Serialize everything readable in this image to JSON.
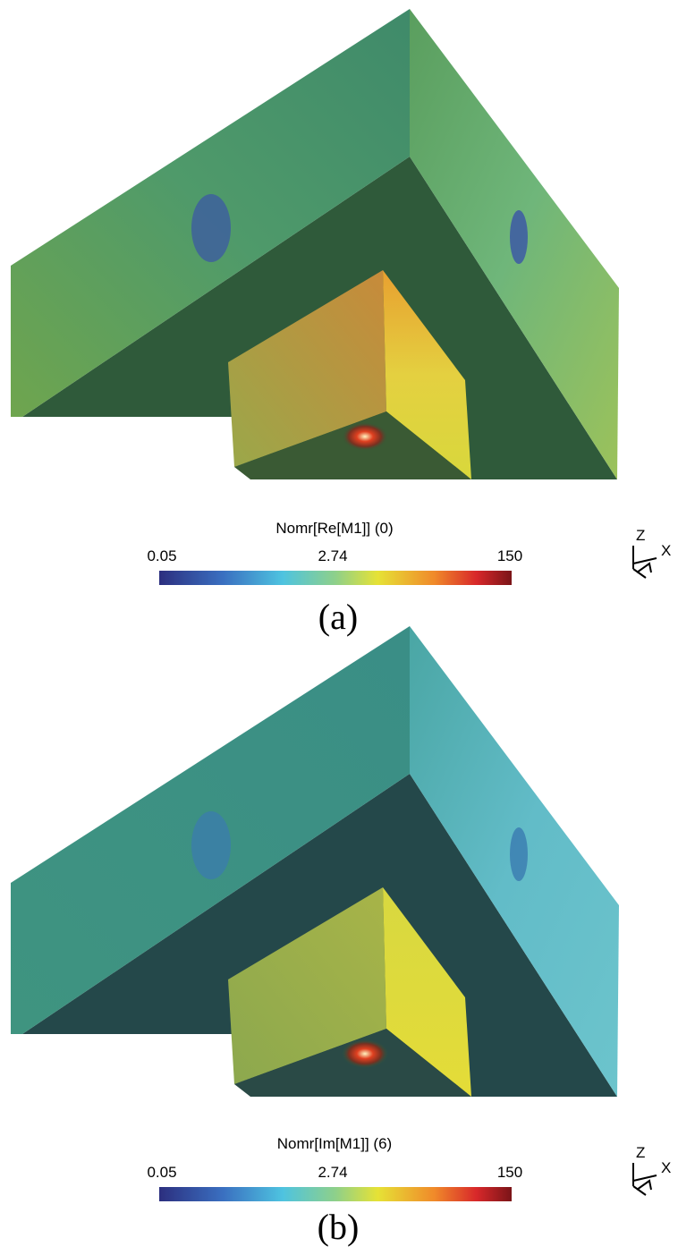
{
  "panels": [
    {
      "colorbar": {
        "title": "Nomr[Re[M1]] (0)",
        "ticks": [
          0.05,
          2.74,
          150
        ]
      },
      "axes": [
        "Z",
        "X"
      ],
      "caption": "(a)"
    },
    {
      "colorbar": {
        "title": "Nomr[Im[M1]] (6)",
        "ticks": [
          0.05,
          2.74,
          150
        ]
      },
      "axes": [
        "Z",
        "X"
      ],
      "caption": "(b)"
    }
  ]
}
